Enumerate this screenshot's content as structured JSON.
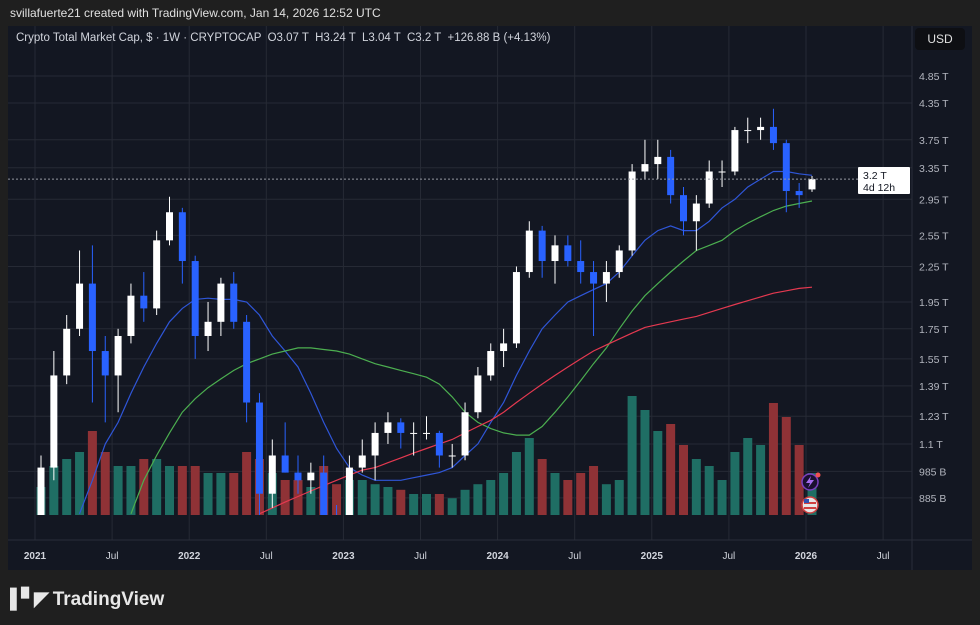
{
  "header": {
    "credit": "svillafuerte21 created with TradingView.com, Jan 14, 2026 12:52 UTC"
  },
  "legend": {
    "symbol": "Crypto Total Market Cap, $ · 1W · CRYPTOCAP",
    "open": "O3.07 T",
    "high": "H3.24 T",
    "low": "L3.04 T",
    "close": "C3.2 T",
    "change": "+126.88 B (+4.13%)"
  },
  "price_axis": {
    "currency_button": "USD",
    "current_price": "3.2 T",
    "countdown": "4d 12h"
  },
  "branding": {
    "logo_text": "TradingView"
  },
  "colors": {
    "background": "#131722",
    "bull": "#ffffff",
    "bear": "#2962ff",
    "ma_blue": "#2f56d8",
    "ma_green": "#4caf50",
    "ma_red": "#e53950",
    "vol_up": "#1f6e64",
    "vol_down": "#8f3236"
  },
  "icons": [
    "lightning-icon",
    "us-flag-icon",
    "tradingview-logo-icon"
  ],
  "chart_data": {
    "type": "candlestick",
    "interval_shown": "1W",
    "yscale": "log",
    "grid": true,
    "y_ticks": [
      {
        "v": 4.85,
        "label": "4.85 T"
      },
      {
        "v": 4.35,
        "label": "4.35 T"
      },
      {
        "v": 3.75,
        "label": "3.75 T"
      },
      {
        "v": 3.35,
        "label": "3.35 T"
      },
      {
        "v": 2.95,
        "label": "2.95 T"
      },
      {
        "v": 2.55,
        "label": "2.55 T"
      },
      {
        "v": 2.25,
        "label": "2.25 T"
      },
      {
        "v": 1.95,
        "label": "1.95 T"
      },
      {
        "v": 1.75,
        "label": "1.75 T"
      },
      {
        "v": 1.55,
        "label": "1.55 T"
      },
      {
        "v": 1.39,
        "label": "1.39 T"
      },
      {
        "v": 1.23,
        "label": "1.23 T"
      },
      {
        "v": 1.1,
        "label": "1.1 T"
      },
      {
        "v": 0.985,
        "label": "985 B"
      },
      {
        "v": 0.885,
        "label": "885 B"
      }
    ],
    "x_ticks": [
      "2021",
      "Jul",
      "2022",
      "Jul",
      "2023",
      "Jul",
      "2024",
      "Jul",
      "2025",
      "Jul",
      "2026",
      "Jul"
    ],
    "start": "2021-01",
    "ohlc": [
      [
        0.78,
        1.05,
        0.75,
        1.0
      ],
      [
        1.0,
        1.6,
        0.95,
        1.45
      ],
      [
        1.45,
        1.85,
        1.4,
        1.75
      ],
      [
        1.75,
        2.4,
        1.7,
        2.1
      ],
      [
        2.1,
        2.45,
        1.3,
        1.6
      ],
      [
        1.6,
        1.7,
        1.2,
        1.45
      ],
      [
        1.45,
        1.75,
        1.25,
        1.7
      ],
      [
        1.7,
        2.1,
        1.65,
        2.0
      ],
      [
        2.0,
        2.2,
        1.8,
        1.9
      ],
      [
        1.9,
        2.6,
        1.85,
        2.5
      ],
      [
        2.5,
        2.98,
        2.45,
        2.8
      ],
      [
        2.8,
        2.85,
        2.1,
        2.3
      ],
      [
        2.3,
        2.35,
        1.55,
        1.7
      ],
      [
        1.7,
        1.95,
        1.6,
        1.8
      ],
      [
        1.8,
        2.15,
        1.7,
        2.1
      ],
      [
        2.1,
        2.2,
        1.75,
        1.8
      ],
      [
        1.8,
        1.85,
        1.2,
        1.3
      ],
      [
        1.3,
        1.35,
        0.82,
        0.9
      ],
      [
        0.9,
        1.12,
        0.85,
        1.05
      ],
      [
        1.05,
        1.2,
        0.98,
        0.98
      ],
      [
        0.98,
        1.05,
        0.9,
        0.95
      ],
      [
        0.95,
        1.02,
        0.9,
        0.98
      ],
      [
        0.98,
        1.05,
        0.76,
        0.82
      ],
      [
        0.82,
        0.86,
        0.78,
        0.8
      ],
      [
        0.8,
        1.05,
        0.79,
        1.0
      ],
      [
        1.0,
        1.12,
        0.98,
        1.05
      ],
      [
        1.05,
        1.2,
        0.95,
        1.15
      ],
      [
        1.15,
        1.25,
        1.1,
        1.2
      ],
      [
        1.2,
        1.22,
        1.08,
        1.15
      ],
      [
        1.15,
        1.2,
        1.05,
        1.15
      ],
      [
        1.15,
        1.23,
        1.12,
        1.15
      ],
      [
        1.15,
        1.16,
        1.0,
        1.05
      ],
      [
        1.05,
        1.1,
        1.0,
        1.05
      ],
      [
        1.05,
        1.3,
        1.03,
        1.25
      ],
      [
        1.25,
        1.5,
        1.22,
        1.45
      ],
      [
        1.45,
        1.65,
        1.42,
        1.6
      ],
      [
        1.6,
        1.75,
        1.5,
        1.65
      ],
      [
        1.65,
        2.25,
        1.62,
        2.2
      ],
      [
        2.2,
        2.7,
        2.15,
        2.6
      ],
      [
        2.6,
        2.65,
        2.15,
        2.3
      ],
      [
        2.3,
        2.55,
        2.1,
        2.45
      ],
      [
        2.45,
        2.55,
        2.25,
        2.3
      ],
      [
        2.3,
        2.5,
        2.1,
        2.2
      ],
      [
        2.2,
        2.3,
        1.7,
        2.1
      ],
      [
        2.1,
        2.3,
        1.95,
        2.2
      ],
      [
        2.2,
        2.45,
        2.15,
        2.4
      ],
      [
        2.4,
        3.4,
        2.35,
        3.3
      ],
      [
        3.3,
        3.75,
        3.2,
        3.4
      ],
      [
        3.4,
        3.75,
        3.2,
        3.5
      ],
      [
        3.5,
        3.6,
        2.9,
        3.0
      ],
      [
        3.0,
        3.1,
        2.55,
        2.7
      ],
      [
        2.7,
        3.0,
        2.4,
        2.9
      ],
      [
        2.9,
        3.45,
        2.85,
        3.3
      ],
      [
        3.3,
        3.45,
        3.1,
        3.3
      ],
      [
        3.3,
        3.95,
        3.25,
        3.9
      ],
      [
        3.9,
        4.1,
        3.7,
        3.9
      ],
      [
        3.9,
        4.1,
        3.75,
        3.95
      ],
      [
        3.95,
        4.25,
        3.6,
        3.7
      ],
      [
        3.7,
        3.75,
        2.8,
        3.05
      ],
      [
        3.05,
        3.15,
        2.85,
        3.0
      ],
      [
        3.07,
        3.24,
        3.04,
        3.2
      ]
    ],
    "volume": [
      20,
      35,
      40,
      45,
      60,
      45,
      35,
      35,
      40,
      40,
      35,
      35,
      35,
      30,
      30,
      30,
      45,
      40,
      30,
      25,
      25,
      20,
      35,
      22,
      25,
      25,
      22,
      20,
      18,
      15,
      15,
      15,
      12,
      18,
      22,
      25,
      30,
      45,
      55,
      40,
      30,
      25,
      30,
      35,
      22,
      25,
      85,
      75,
      60,
      65,
      50,
      40,
      35,
      25,
      45,
      55,
      50,
      80,
      70,
      50,
      30
    ],
    "series": [
      {
        "values": [
          null,
          null,
          null,
          0.83,
          0.95,
          1.1,
          1.2,
          1.35,
          1.5,
          1.65,
          1.8,
          1.9,
          1.97,
          1.98,
          1.97,
          1.97,
          1.95,
          1.85,
          1.7,
          1.6,
          1.5,
          1.35,
          1.2,
          1.08,
          1.0,
          0.97,
          0.95,
          0.95,
          0.95,
          0.96,
          0.97,
          0.98,
          1.0,
          1.05,
          1.1,
          1.2,
          1.3,
          1.45,
          1.6,
          1.75,
          1.85,
          1.95,
          2.0,
          2.05,
          2.1,
          2.2,
          2.35,
          2.5,
          2.6,
          2.65,
          2.6,
          2.6,
          2.7,
          2.85,
          2.95,
          3.1,
          3.2,
          3.3,
          3.3,
          3.27,
          3.25
        ],
        "color": "#2f56d8"
      },
      {
        "values": [
          null,
          null,
          null,
          null,
          null,
          null,
          null,
          0.83,
          0.95,
          1.05,
          1.15,
          1.25,
          1.32,
          1.38,
          1.43,
          1.48,
          1.52,
          1.55,
          1.58,
          1.6,
          1.62,
          1.62,
          1.61,
          1.6,
          1.58,
          1.55,
          1.52,
          1.5,
          1.48,
          1.46,
          1.44,
          1.4,
          1.33,
          1.25,
          1.2,
          1.17,
          1.15,
          1.14,
          1.14,
          1.18,
          1.25,
          1.33,
          1.42,
          1.52,
          1.62,
          1.75,
          1.88,
          2.0,
          2.1,
          2.2,
          2.3,
          2.4,
          2.45,
          2.5,
          2.6,
          2.68,
          2.75,
          2.82,
          2.87,
          2.9,
          2.93
        ],
        "color": "#4caf50"
      },
      {
        "values": [
          null,
          null,
          null,
          null,
          null,
          null,
          null,
          null,
          null,
          null,
          null,
          null,
          null,
          null,
          null,
          null,
          null,
          0.83,
          0.85,
          0.87,
          0.89,
          0.91,
          0.93,
          0.95,
          0.97,
          0.99,
          1.0,
          1.02,
          1.04,
          1.06,
          1.08,
          1.1,
          1.12,
          1.15,
          1.18,
          1.21,
          1.25,
          1.3,
          1.35,
          1.4,
          1.45,
          1.5,
          1.55,
          1.6,
          1.64,
          1.68,
          1.72,
          1.76,
          1.78,
          1.8,
          1.82,
          1.84,
          1.87,
          1.9,
          1.93,
          1.96,
          1.99,
          2.02,
          2.04,
          2.06,
          2.07
        ],
        "color": "#e53950"
      }
    ],
    "last_price": 3.2
  }
}
